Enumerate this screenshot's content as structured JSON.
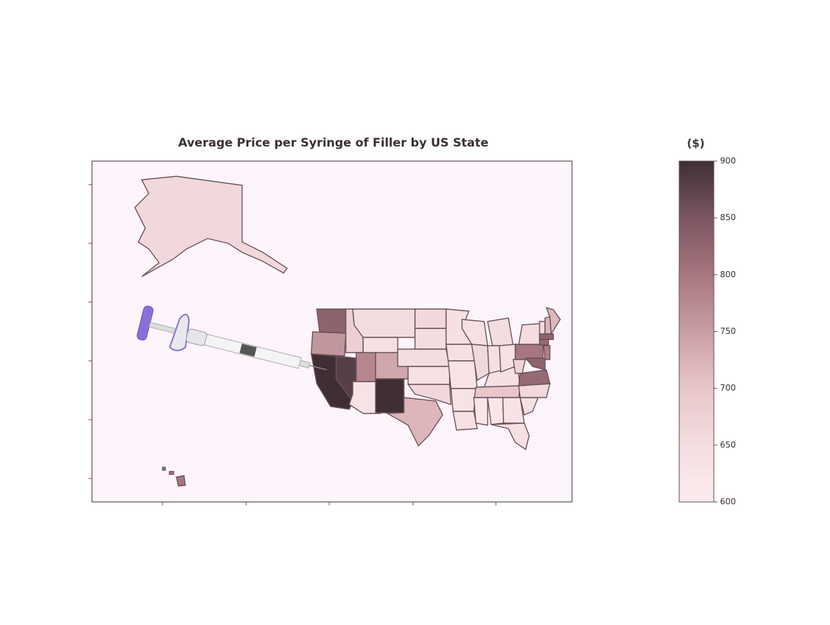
{
  "chart_data": {
    "type": "choropleth",
    "title": "Average Price per Syringe of Filler by US State",
    "colorbar_label": "($)",
    "clim": [
      600,
      900
    ],
    "cticks": [
      600,
      650,
      700,
      750,
      800,
      850,
      900
    ],
    "colors": [
      "#fcecef",
      "#f3dde0",
      "#e8c6ca",
      "#c99ea4",
      "#a87680",
      "#7b5661",
      "#3f2f35"
    ],
    "values": [
      830,
      760,
      900,
      880,
      680,
      650,
      640,
      780,
      630,
      740,
      900,
      720,
      660,
      650,
      650,
      640,
      660,
      640,
      640,
      630,
      630,
      640,
      640,
      660,
      620,
      650,
      640,
      640,
      700,
      620,
      640,
      630,
      640,
      640,
      660,
      820,
      670,
      800,
      650,
      830,
      790,
      660,
      720,
      720,
      830,
      820,
      660,
      800
    ]
  }
}
